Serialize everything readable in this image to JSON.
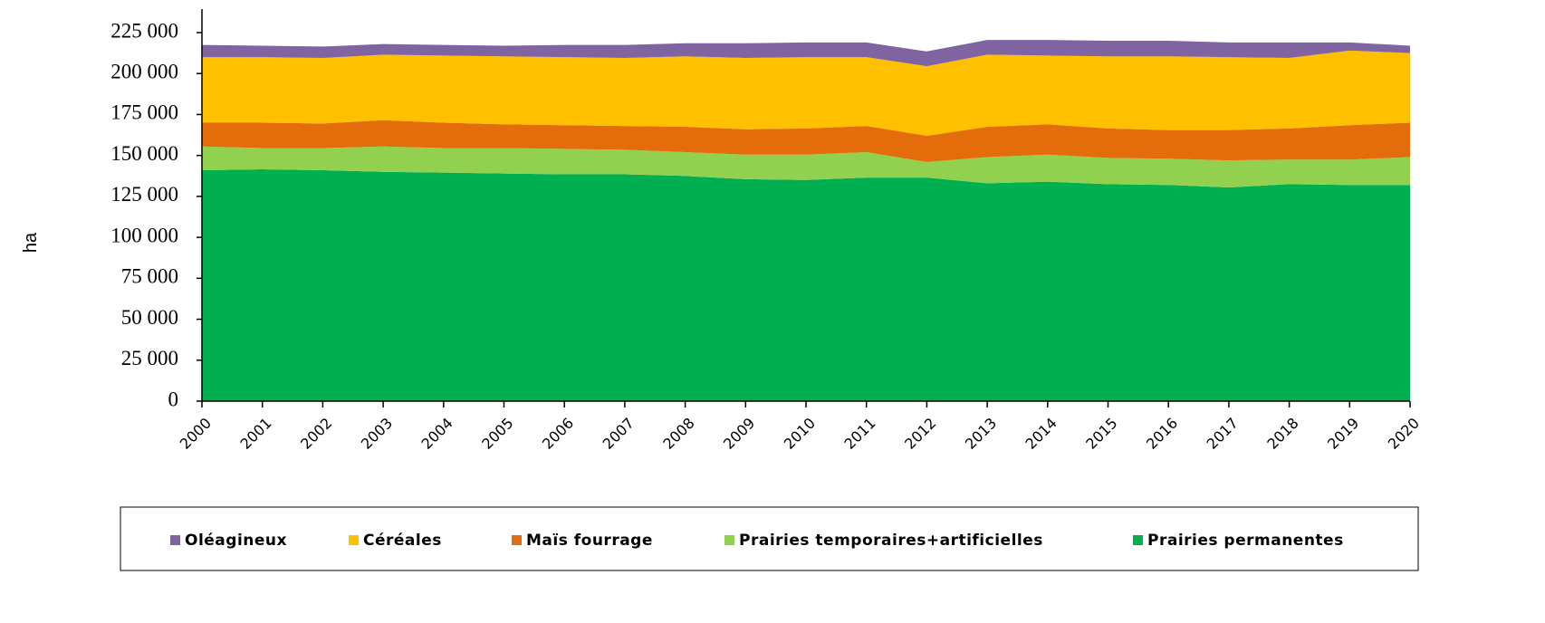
{
  "chart_data": {
    "type": "stacked-area",
    "y_label": "ha",
    "categories": [
      "2000",
      "2001",
      "2002",
      "2003",
      "2004",
      "2005",
      "2006",
      "2007",
      "2008",
      "2009",
      "2010",
      "2011",
      "2012",
      "2013",
      "2014",
      "2015",
      "2016",
      "2017",
      "2018",
      "2019",
      "2020"
    ],
    "series": [
      {
        "name": "Oléagineux",
        "color": "#8064a2",
        "values": [
          7500,
          7000,
          7000,
          6500,
          6500,
          6500,
          7500,
          8000,
          8000,
          9000,
          9000,
          9000,
          9000,
          9000,
          9500,
          9500,
          9500,
          9000,
          9500,
          5000,
          4500
        ]
      },
      {
        "name": "Céréales",
        "color": "#ffc000",
        "values": [
          40000,
          40000,
          40000,
          40000,
          41000,
          41500,
          41500,
          41500,
          43000,
          43500,
          43500,
          42000,
          42500,
          44000,
          42000,
          44000,
          45000,
          44500,
          43000,
          45500,
          42500
        ]
      },
      {
        "name": "Maïs fourrage",
        "color": "#e46c0a",
        "values": [
          14500,
          15500,
          15000,
          16000,
          15500,
          14500,
          14500,
          14500,
          15500,
          15500,
          16000,
          16000,
          16000,
          18500,
          18500,
          18000,
          17500,
          18500,
          19000,
          21000,
          21000
        ]
      },
      {
        "name": "Prairies temporaires+artificielles",
        "color": "#92d050",
        "values": [
          14500,
          13000,
          13500,
          15500,
          15000,
          15500,
          15500,
          15000,
          14500,
          15000,
          15500,
          15500,
          9500,
          16000,
          16500,
          16000,
          16000,
          16500,
          15000,
          15500,
          17000
        ]
      },
      {
        "name": "Prairies permanentes",
        "color": "#00b050",
        "values": [
          141000,
          141500,
          141000,
          140000,
          139500,
          139000,
          138500,
          138500,
          137500,
          135500,
          135000,
          136500,
          136500,
          133000,
          134000,
          132500,
          132000,
          130500,
          132500,
          132000,
          132000
        ]
      }
    ],
    "stack_order": "bottom-up from last series",
    "ylim": [
      0,
      225000
    ],
    "yticks": [
      0,
      {
        "value": 25000,
        "label": "25 000"
      },
      {
        "value": 50000,
        "label": "50 000"
      },
      {
        "value": 75000,
        "label": "75 000"
      },
      {
        "value": 100000,
        "label": "100 000"
      },
      {
        "value": 125000,
        "label": "125 000"
      },
      {
        "value": 150000,
        "label": "150 000"
      },
      {
        "value": 175000,
        "label": "175 000"
      },
      {
        "value": 200000,
        "label": "200 000"
      },
      {
        "value": 225000,
        "label": "225 000"
      }
    ],
    "legend": "bottom"
  }
}
